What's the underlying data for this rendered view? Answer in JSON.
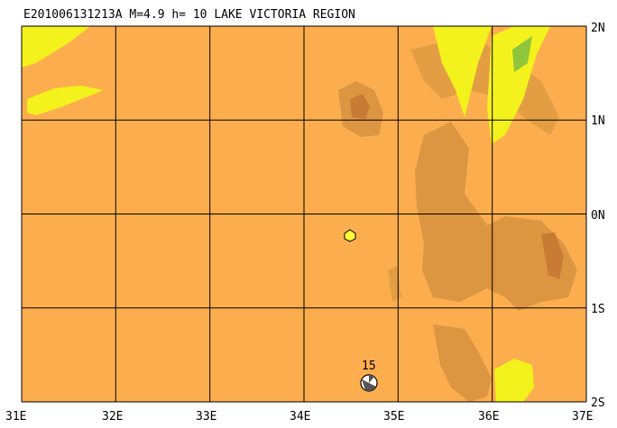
{
  "header": {
    "title": "E201006131213A  M=4.9  h= 10 LAKE VICTORIA REGION"
  },
  "map": {
    "lon_labels": [
      "31E",
      "32E",
      "33E",
      "34E",
      "35E",
      "36E",
      "37E"
    ],
    "lat_labels": [
      "2N",
      "1N",
      "0N",
      "1S",
      "2S"
    ],
    "markers": [
      {
        "label": "15"
      }
    ]
  }
}
